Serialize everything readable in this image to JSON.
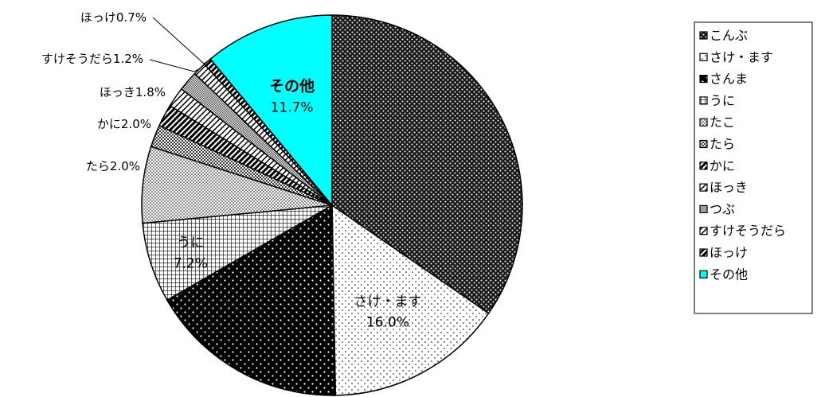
{
  "chart_data": {
    "type": "pie",
    "title": "",
    "legend_position": "right",
    "slices": [
      {
        "name": "こんぶ",
        "value": 36.7,
        "pattern": "dots-dark",
        "label": "",
        "pct_label": "",
        "color": "#000000"
      },
      {
        "name": "さけ・ます",
        "value": 16.0,
        "pattern": "dots-light",
        "label": "さけ・ます",
        "pct_label": "16.0%",
        "color": "#000000"
      },
      {
        "name": "さんま",
        "value": 18.0,
        "pattern": "dots-white-on-black",
        "label": "",
        "pct_label": "",
        "color": "#000000"
      },
      {
        "name": "うに",
        "value": 7.2,
        "pattern": "grid",
        "label": "うに",
        "pct_label": "7.2%",
        "color": "#000000"
      },
      {
        "name": "たこ",
        "value": 6.9,
        "pattern": "crosshatch",
        "label": "",
        "pct_label": "",
        "color": "#000000"
      },
      {
        "name": "たら",
        "value": 2.0,
        "pattern": "checker",
        "label": "たら",
        "pct_label": "2.0%",
        "color": "#000000"
      },
      {
        "name": "かに",
        "value": 2.0,
        "pattern": "diag-dense",
        "label": "かに",
        "pct_label": "2.0%",
        "color": "#000000"
      },
      {
        "name": "ほっき",
        "value": 1.8,
        "pattern": "diag-light",
        "label": "ほっき",
        "pct_label": "1.8%",
        "color": "#000000"
      },
      {
        "name": "つぶ",
        "value": 1.8,
        "pattern": "checker-fine",
        "label": "",
        "pct_label": "",
        "color": "#000000"
      },
      {
        "name": "すけそうだら",
        "value": 1.2,
        "pattern": "diag-light",
        "label": "すけそうだら",
        "pct_label": "1.2%",
        "color": "#000000"
      },
      {
        "name": "ほっけ",
        "value": 0.7,
        "pattern": "diag-dense",
        "label": "ほっけ",
        "pct_label": "0.7%",
        "color": "#000000"
      },
      {
        "name": "その他",
        "value": 11.7,
        "pattern": "solid",
        "label": "その他",
        "pct_label": "11.7%",
        "color": "#00ffff"
      }
    ]
  }
}
